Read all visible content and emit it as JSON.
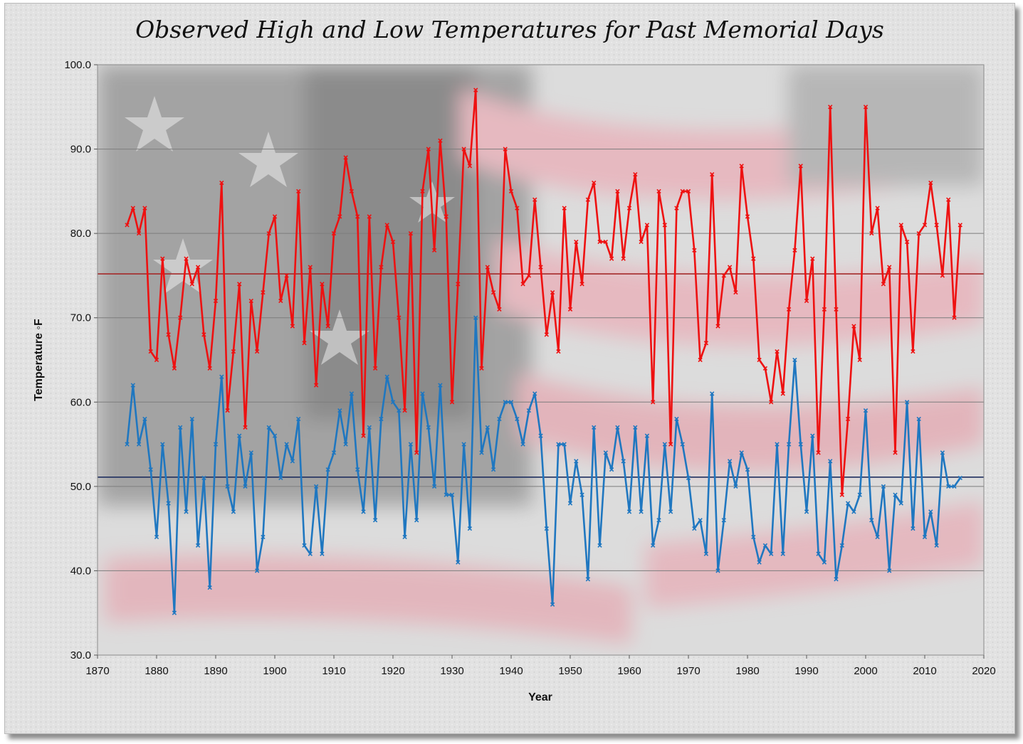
{
  "chart_data": {
    "type": "line",
    "title": "Observed High and Low Temperatures for Past Memorial Days",
    "xlabel": "Year",
    "ylabel": "Temperature ◦F",
    "xlim": [
      1870,
      2020
    ],
    "ylim": [
      30,
      100
    ],
    "x_ticks": [
      "1870",
      "1880",
      "1890",
      "1900",
      "1910",
      "1920",
      "1930",
      "1940",
      "1950",
      "1960",
      "1970",
      "1980",
      "1990",
      "2000",
      "2010",
      "2020"
    ],
    "y_ticks": [
      "30.0",
      "40.0",
      "50.0",
      "60.0",
      "70.0",
      "80.0",
      "90.0",
      "100.0"
    ],
    "grid": true,
    "legend": "none",
    "colors": {
      "high": "#ee1111",
      "low": "#1f77c0",
      "high_avg": "#a52a2a",
      "low_avg": "#1f2f5f"
    },
    "x": [
      1875,
      1876,
      1877,
      1878,
      1879,
      1880,
      1881,
      1882,
      1883,
      1884,
      1885,
      1886,
      1887,
      1888,
      1889,
      1890,
      1891,
      1892,
      1893,
      1894,
      1895,
      1896,
      1897,
      1898,
      1899,
      1900,
      1901,
      1902,
      1903,
      1904,
      1905,
      1906,
      1907,
      1908,
      1909,
      1910,
      1911,
      1912,
      1913,
      1914,
      1915,
      1916,
      1917,
      1918,
      1919,
      1920,
      1921,
      1922,
      1923,
      1924,
      1925,
      1926,
      1927,
      1928,
      1929,
      1930,
      1931,
      1932,
      1933,
      1934,
      1935,
      1936,
      1937,
      1938,
      1939,
      1940,
      1941,
      1942,
      1943,
      1944,
      1945,
      1946,
      1947,
      1948,
      1949,
      1950,
      1951,
      1952,
      1953,
      1954,
      1955,
      1956,
      1957,
      1958,
      1959,
      1960,
      1961,
      1962,
      1963,
      1964,
      1965,
      1966,
      1967,
      1968,
      1969,
      1970,
      1971,
      1972,
      1973,
      1974,
      1975,
      1976,
      1977,
      1978,
      1979,
      1980,
      1981,
      1982,
      1983,
      1984,
      1985,
      1986,
      1987,
      1988,
      1989,
      1990,
      1991,
      1992,
      1993,
      1994,
      1995,
      1996,
      1997,
      1998,
      1999,
      2000,
      2001,
      2002,
      2003,
      2004,
      2005,
      2006,
      2007,
      2008,
      2009,
      2010,
      2011,
      2012,
      2013,
      2014,
      2015,
      2016
    ],
    "series": [
      {
        "key": "high",
        "values": [
          81,
          83,
          80,
          83,
          66,
          65,
          77,
          68,
          64,
          70,
          77,
          74,
          76,
          68,
          64,
          72,
          86,
          59,
          66,
          74,
          57,
          72,
          66,
          73,
          80,
          82,
          72,
          75,
          69,
          85,
          67,
          76,
          62,
          74,
          69,
          80,
          82,
          89,
          85,
          82,
          56,
          82,
          64,
          76,
          81,
          79,
          70,
          59,
          80,
          54,
          85,
          90,
          78,
          91,
          82,
          60,
          74,
          90,
          88,
          97,
          64,
          76,
          73,
          71,
          90,
          85,
          83,
          74,
          75,
          84,
          76,
          68,
          73,
          66,
          83,
          71,
          79,
          74,
          84,
          86,
          79,
          79,
          77,
          85,
          77,
          83,
          87,
          79,
          81,
          60,
          85,
          81,
          55,
          83,
          85,
          85,
          78,
          65,
          67,
          87,
          69,
          75,
          76,
          73,
          88,
          82,
          77,
          65,
          64,
          60,
          66,
          61,
          71,
          78,
          88,
          72,
          77,
          54,
          71,
          95,
          71,
          49,
          58,
          69,
          65,
          95,
          80,
          83,
          74,
          76,
          54,
          81,
          79,
          66,
          80,
          81,
          86,
          81,
          75,
          84,
          70,
          81
        ]
      },
      {
        "key": "low",
        "values": [
          55,
          62,
          55,
          58,
          52,
          44,
          55,
          48,
          35,
          57,
          47,
          58,
          43,
          51,
          38,
          55,
          63,
          50,
          47,
          56,
          50,
          54,
          40,
          44,
          57,
          56,
          51,
          55,
          53,
          58,
          43,
          42,
          50,
          42,
          52,
          54,
          59,
          55,
          61,
          52,
          47,
          57,
          46,
          58,
          63,
          60,
          59,
          44,
          55,
          46,
          61,
          57,
          50,
          62,
          49,
          49,
          41,
          55,
          45,
          70,
          54,
          57,
          52,
          58,
          60,
          60,
          58,
          55,
          59,
          61,
          56,
          45,
          36,
          55,
          55,
          48,
          53,
          49,
          39,
          57,
          43,
          54,
          52,
          57,
          53,
          47,
          57,
          47,
          56,
          43,
          46,
          55,
          47,
          58,
          55,
          51,
          45,
          46,
          42,
          61,
          40,
          46,
          53,
          50,
          54,
          52,
          44,
          41,
          43,
          42,
          55,
          42,
          55,
          65,
          55,
          47,
          56,
          42,
          41,
          53,
          39,
          43,
          48,
          47,
          49,
          59,
          46,
          44,
          50,
          40,
          49,
          48,
          60,
          45,
          58,
          44,
          47,
          43,
          54,
          50,
          50,
          51
        ]
      }
    ],
    "reference_lines": [
      {
        "key": "high_avg",
        "y": 75.2
      },
      {
        "key": "low_avg",
        "y": 51.1
      }
    ]
  }
}
